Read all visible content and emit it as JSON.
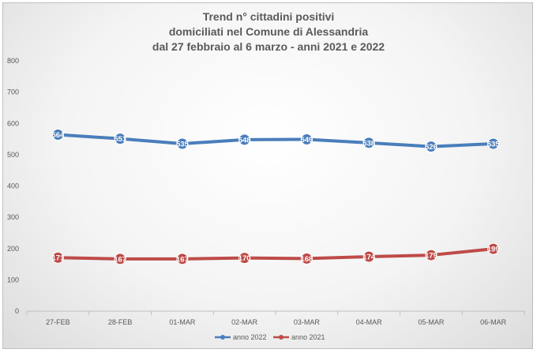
{
  "chart_data": {
    "type": "line",
    "title_lines": [
      "Trend n° cittadini positivi",
      "domiciliati nel Comune di Alessandria",
      "dal 27 febbraio al 6 marzo - anni 2021 e 2022"
    ],
    "categories": [
      "27-FEB",
      "28-FEB",
      "01-MAR",
      "02-MAR",
      "03-MAR",
      "04-MAR",
      "05-MAR",
      "06-MAR"
    ],
    "ylim": [
      0,
      800
    ],
    "yticks": [
      0,
      100,
      200,
      300,
      400,
      500,
      600,
      700,
      800
    ],
    "grid": false,
    "legend_position": "bottom",
    "series": [
      {
        "name": "anno 2022",
        "color": "#4a7ebb",
        "values": [
          564,
          551,
          535,
          548,
          549,
          538,
          526,
          535
        ]
      },
      {
        "name": "anno 2021",
        "color": "#be4b48",
        "values": [
          171,
          167,
          167,
          170,
          168,
          174,
          179,
          199
        ]
      }
    ]
  }
}
